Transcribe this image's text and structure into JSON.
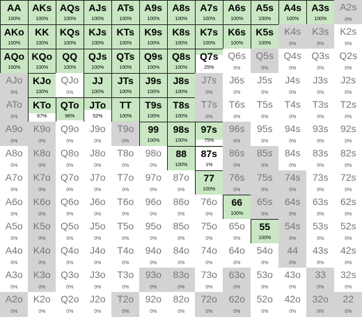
{
  "range_grid": {
    "rows": [
      [
        [
          "AA",
          100
        ],
        [
          "AKs",
          100
        ],
        [
          "AQs",
          100
        ],
        [
          "AJs",
          100
        ],
        [
          "ATs",
          100
        ],
        [
          "A9s",
          100
        ],
        [
          "A8s",
          100
        ],
        [
          "A7s",
          100
        ],
        [
          "A6s",
          100
        ],
        [
          "A5s",
          100
        ],
        [
          "A4s",
          100
        ],
        [
          "A3s",
          100
        ],
        [
          "A2s",
          0
        ]
      ],
      [
        [
          "AKo",
          100
        ],
        [
          "KK",
          100
        ],
        [
          "KQs",
          100
        ],
        [
          "KJs",
          100
        ],
        [
          "KTs",
          100
        ],
        [
          "K9s",
          100
        ],
        [
          "K8s",
          100
        ],
        [
          "K7s",
          100
        ],
        [
          "K6s",
          100
        ],
        [
          "K5s",
          100
        ],
        [
          "K4s",
          0
        ],
        [
          "K3s",
          0
        ],
        [
          "K2s",
          0
        ]
      ],
      [
        [
          "AQo",
          100
        ],
        [
          "KQo",
          100
        ],
        [
          "QQ",
          100
        ],
        [
          "QJs",
          100
        ],
        [
          "QTs",
          100
        ],
        [
          "Q9s",
          100
        ],
        [
          "Q8s",
          100
        ],
        [
          "Q7s",
          25
        ],
        [
          "Q6s",
          0
        ],
        [
          "Q5s",
          0
        ],
        [
          "Q4s",
          0
        ],
        [
          "Q3s",
          0
        ],
        [
          "Q2s",
          0
        ]
      ],
      [
        [
          "AJo",
          0
        ],
        [
          "KJo",
          100
        ],
        [
          "QJo",
          0
        ],
        [
          "JJ",
          100
        ],
        [
          "JTs",
          100
        ],
        [
          "J9s",
          100
        ],
        [
          "J8s",
          100
        ],
        [
          "J7s",
          0
        ],
        [
          "J6s",
          0
        ],
        [
          "J5s",
          0
        ],
        [
          "J4s",
          0
        ],
        [
          "J3s",
          0
        ],
        [
          "J2s",
          0
        ]
      ],
      [
        [
          "ATo",
          0
        ],
        [
          "KTo",
          67
        ],
        [
          "QTo",
          96
        ],
        [
          "JTo",
          52
        ],
        [
          "TT",
          100
        ],
        [
          "T9s",
          100
        ],
        [
          "T8s",
          100
        ],
        [
          "T7s",
          0
        ],
        [
          "T6s",
          0
        ],
        [
          "T5s",
          0
        ],
        [
          "T4s",
          0
        ],
        [
          "T3s",
          0
        ],
        [
          "T2s",
          0
        ]
      ],
      [
        [
          "A9o",
          0
        ],
        [
          "K9o",
          0
        ],
        [
          "Q9o",
          0
        ],
        [
          "J9o",
          0
        ],
        [
          "T9o",
          0
        ],
        [
          "99",
          100
        ],
        [
          "98s",
          100
        ],
        [
          "97s",
          75
        ],
        [
          "96s",
          0
        ],
        [
          "95s",
          0
        ],
        [
          "94s",
          0
        ],
        [
          "93s",
          0
        ],
        [
          "92s",
          0
        ]
      ],
      [
        [
          "A8o",
          0
        ],
        [
          "K8o",
          0
        ],
        [
          "Q8o",
          0
        ],
        [
          "J8o",
          0
        ],
        [
          "T8o",
          0
        ],
        [
          "98o",
          0
        ],
        [
          "88",
          100
        ],
        [
          "87s",
          1
        ],
        [
          "86s",
          0
        ],
        [
          "85s",
          0
        ],
        [
          "84s",
          0
        ],
        [
          "83s",
          0
        ],
        [
          "82s",
          0
        ]
      ],
      [
        [
          "A7o",
          0
        ],
        [
          "K7o",
          0
        ],
        [
          "Q7o",
          0
        ],
        [
          "J7o",
          0
        ],
        [
          "T7o",
          0
        ],
        [
          "97o",
          0
        ],
        [
          "87o",
          0
        ],
        [
          "77",
          100
        ],
        [
          "76s",
          0
        ],
        [
          "75s",
          0
        ],
        [
          "74s",
          0
        ],
        [
          "73s",
          0
        ],
        [
          "72s",
          0
        ]
      ],
      [
        [
          "A6o",
          0
        ],
        [
          "K6o",
          0
        ],
        [
          "Q6o",
          0
        ],
        [
          "J6o",
          0
        ],
        [
          "T6o",
          0
        ],
        [
          "96o",
          0
        ],
        [
          "86o",
          0
        ],
        [
          "76o",
          0
        ],
        [
          "66",
          100
        ],
        [
          "65s",
          0
        ],
        [
          "64s",
          0
        ],
        [
          "63s",
          0
        ],
        [
          "62s",
          0
        ]
      ],
      [
        [
          "A5o",
          0
        ],
        [
          "K5o",
          0
        ],
        [
          "Q5o",
          0
        ],
        [
          "J5o",
          0
        ],
        [
          "T5o",
          0
        ],
        [
          "95o",
          0
        ],
        [
          "85o",
          0
        ],
        [
          "75o",
          0
        ],
        [
          "65o",
          0
        ],
        [
          "55",
          100
        ],
        [
          "54s",
          0
        ],
        [
          "53s",
          0
        ],
        [
          "52s",
          0
        ]
      ],
      [
        [
          "A4o",
          0
        ],
        [
          "K4o",
          0
        ],
        [
          "Q4o",
          0
        ],
        [
          "J4o",
          0
        ],
        [
          "T4o",
          0
        ],
        [
          "94o",
          0
        ],
        [
          "84o",
          0
        ],
        [
          "74o",
          0
        ],
        [
          "64o",
          0
        ],
        [
          "54o",
          0
        ],
        [
          "44",
          0
        ],
        [
          "43s",
          0
        ],
        [
          "42s",
          0
        ]
      ],
      [
        [
          "A3o",
          0
        ],
        [
          "K3o",
          0
        ],
        [
          "Q3o",
          0
        ],
        [
          "J3o",
          0
        ],
        [
          "T3o",
          0
        ],
        [
          "93o",
          0
        ],
        [
          "83o",
          0
        ],
        [
          "73o",
          0
        ],
        [
          "63o",
          0
        ],
        [
          "53o",
          0
        ],
        [
          "43o",
          0
        ],
        [
          "33",
          0
        ],
        [
          "32s",
          0
        ]
      ],
      [
        [
          "A2o",
          0
        ],
        [
          "K2o",
          0
        ],
        [
          "Q2o",
          0
        ],
        [
          "J2o",
          0
        ],
        [
          "T2o",
          0
        ],
        [
          "92o",
          0
        ],
        [
          "82o",
          0
        ],
        [
          "72o",
          0
        ],
        [
          "62o",
          0
        ],
        [
          "52o",
          0
        ],
        [
          "42o",
          0
        ],
        [
          "32o",
          0
        ],
        [
          "22",
          0
        ]
      ]
    ],
    "pct_suffix": "%",
    "colors": {
      "selected_fill": "#c9e7c3",
      "shade_zero": "#d3d3d3",
      "white_zero": "#ffffff"
    },
    "shaded_zero_cells": [
      "A2s",
      "K4s",
      "K3s",
      "Q5s",
      "AJo",
      "J7s",
      "ATo",
      "T7s",
      "A9o",
      "K9o",
      "T9o",
      "96s",
      "K8o",
      "86s",
      "85s",
      "K7o",
      "76s",
      "75s",
      "74s",
      "K6o",
      "65s",
      "64s",
      "K5o",
      "54s",
      "K4o",
      "44",
      "K3o",
      "93o",
      "83o",
      "63o",
      "33",
      "A2o",
      "T2o",
      "72o",
      "62o",
      "32o",
      "22"
    ]
  }
}
